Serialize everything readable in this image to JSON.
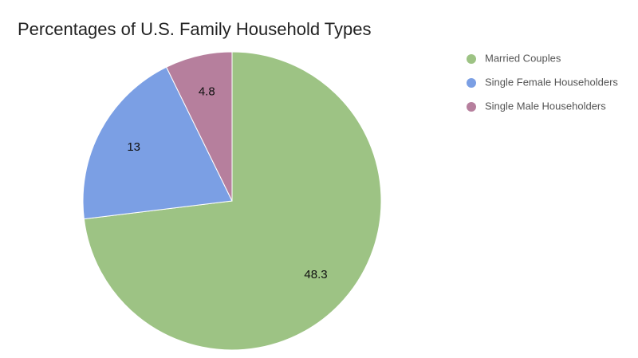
{
  "chart_data": {
    "type": "pie",
    "title": "Percentages of U.S. Family Household Types",
    "categories": [
      "Married Couples",
      "Single Female Householders",
      "Single Male Householders"
    ],
    "values": [
      48.3,
      13,
      4.8
    ],
    "colors": [
      "#9dc384",
      "#7b9fe4",
      "#b67f9d"
    ],
    "legend": "right"
  }
}
